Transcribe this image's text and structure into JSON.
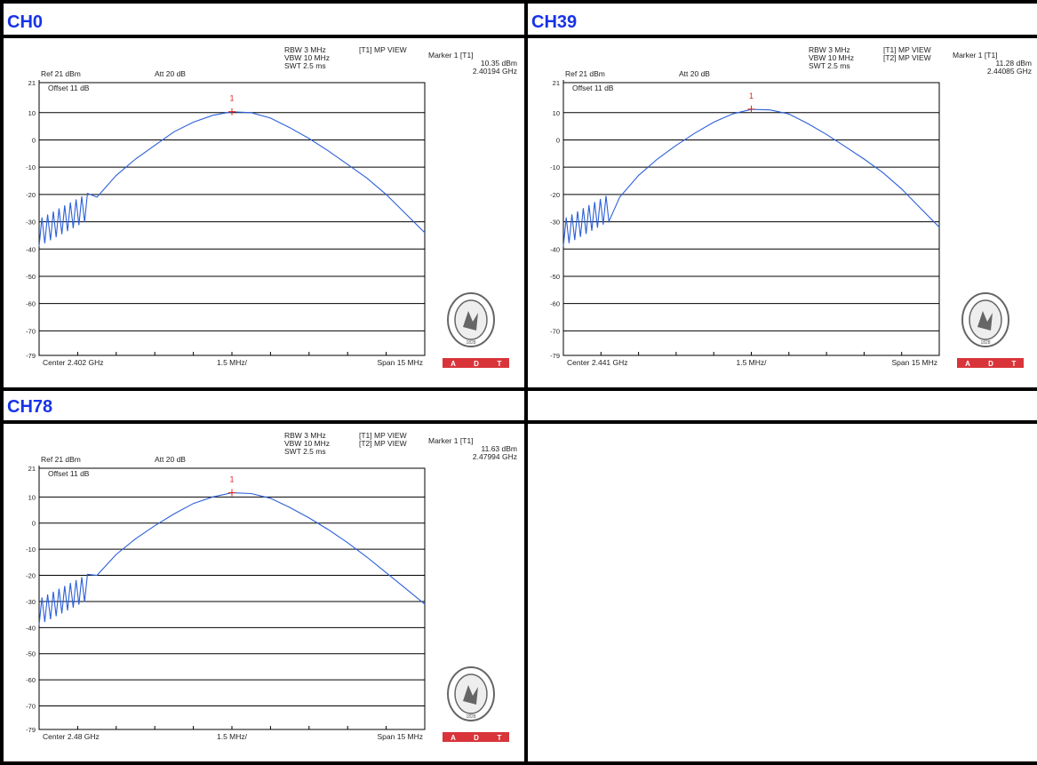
{
  "panels": [
    {
      "title": "CH0",
      "header": {
        "rbw": "RBW 3 MHz",
        "vbw": "VBW 10 MHz",
        "swt": "SWT 2.5 ms",
        "trace1": "[T1] MP VIEW",
        "trace2": "",
        "marker_label": "Marker 1 [T1]",
        "marker_level": "10.35 dBm",
        "marker_freq": "2.40194 GHz",
        "ref": "Ref 21 dBm",
        "att": "Att  20 dB",
        "offset": "Offset 11 dB",
        "center": "Center 2.402 GHz",
        "div": "1.5 MHz/",
        "span": "Span 15 MHz"
      }
    },
    {
      "title": "CH39",
      "header": {
        "rbw": "RBW 3 MHz",
        "vbw": "VBW 10 MHz",
        "swt": "SWT 2.5 ms",
        "trace1": "[T1] MP VIEW",
        "trace2": "[T2] MP VIEW",
        "marker_label": "Marker 1 [T1]",
        "marker_level": "11.28 dBm",
        "marker_freq": "2.44085 GHz",
        "ref": "Ref 21 dBm",
        "att": "Att  20 dB",
        "offset": "Offset 11 dB",
        "center": "Center 2.441 GHz",
        "div": "1.5 MHz/",
        "span": "Span 15 MHz"
      }
    },
    {
      "title": "CH78",
      "header": {
        "rbw": "RBW 3 MHz",
        "vbw": "VBW 10 MHz",
        "swt": "SWT 2.5 ms",
        "trace1": "[T1] MP VIEW",
        "trace2": "[T2] MP VIEW",
        "marker_label": "Marker 1 [T1]",
        "marker_level": "11.63 dBm",
        "marker_freq": "2.47994 GHz",
        "ref": "Ref 21 dBm",
        "att": "Att  20 dB",
        "offset": "Offset 11 dB",
        "center": "Center 2.48 GHz",
        "div": "1.5 MHz/",
        "span": "Span 15 MHz"
      }
    }
  ],
  "badge": {
    "letters": [
      "A",
      "D",
      "T"
    ],
    "seal_year": "1828"
  },
  "colors": {
    "title": "#1733e8",
    "trace": "#2b5fd9",
    "marker": "#e0241b",
    "badge": "#d9343a"
  },
  "chart_data": [
    {
      "type": "line",
      "title": "CH0",
      "ytick_labels": [
        "21",
        "10",
        "0",
        "-10",
        "-20",
        "-30",
        "-40",
        "-50",
        "-60",
        "-70",
        "-79"
      ],
      "ylim": [
        -79,
        21
      ],
      "xlim": [
        0,
        10
      ],
      "grid": true,
      "series": [
        {
          "x": [
            0,
            0.5,
            1,
            1.5,
            2,
            2.5,
            3,
            3.5,
            4,
            4.5,
            5,
            5.5,
            6,
            6.5,
            7,
            7.5,
            8,
            8.5,
            9,
            9.5,
            10
          ],
          "y": [
            -39,
            -33,
            -29,
            -21,
            -13,
            -7,
            -2,
            3,
            6.5,
            9,
            10.3,
            10,
            8,
            4.5,
            0.5,
            -4,
            -9,
            -14,
            -20,
            -27,
            -34
          ]
        }
      ],
      "marker": {
        "x": 5.0,
        "y": 10.35,
        "label": "1"
      }
    },
    {
      "type": "line",
      "title": "CH39",
      "ytick_labels": [
        "21",
        "10",
        "0",
        "-10",
        "-20",
        "-30",
        "-40",
        "-50",
        "-60",
        "-70",
        "-79"
      ],
      "ylim": [
        -79,
        21
      ],
      "xlim": [
        0,
        10
      ],
      "grid": true,
      "series": [
        {
          "x": [
            0,
            0.5,
            1,
            1.5,
            2,
            2.5,
            3,
            3.5,
            4,
            4.5,
            5,
            5.5,
            6,
            6.5,
            7,
            7.5,
            8,
            8.5,
            9,
            9.5,
            10
          ],
          "y": [
            -39,
            -33,
            -28,
            -21,
            -13,
            -7,
            -2,
            2.5,
            6.5,
            9.5,
            11.2,
            11,
            9.5,
            6,
            2,
            -2.5,
            -7,
            -12,
            -18,
            -25,
            -32
          ]
        }
      ],
      "marker": {
        "x": 5.0,
        "y": 11.28,
        "label": "1"
      }
    },
    {
      "type": "line",
      "title": "CH78",
      "ytick_labels": [
        "21",
        "10",
        "0",
        "-10",
        "-20",
        "-30",
        "-40",
        "-50",
        "-60",
        "-70",
        "-79"
      ],
      "ylim": [
        -79,
        21
      ],
      "xlim": [
        0,
        10
      ],
      "grid": true,
      "series": [
        {
          "x": [
            0,
            0.5,
            1,
            1.5,
            2,
            2.5,
            3,
            3.5,
            4,
            4.5,
            5,
            5.5,
            6,
            6.5,
            7,
            7.5,
            8,
            8.5,
            9,
            9.5,
            10
          ],
          "y": [
            -38,
            -33,
            -28,
            -20,
            -12,
            -6,
            -1,
            3.5,
            7.5,
            10,
            11.6,
            11.3,
            9.5,
            6,
            2,
            -2.5,
            -7.5,
            -13,
            -19,
            -25,
            -31
          ]
        }
      ],
      "marker": {
        "x": 5.0,
        "y": 11.63,
        "label": "1"
      }
    }
  ]
}
